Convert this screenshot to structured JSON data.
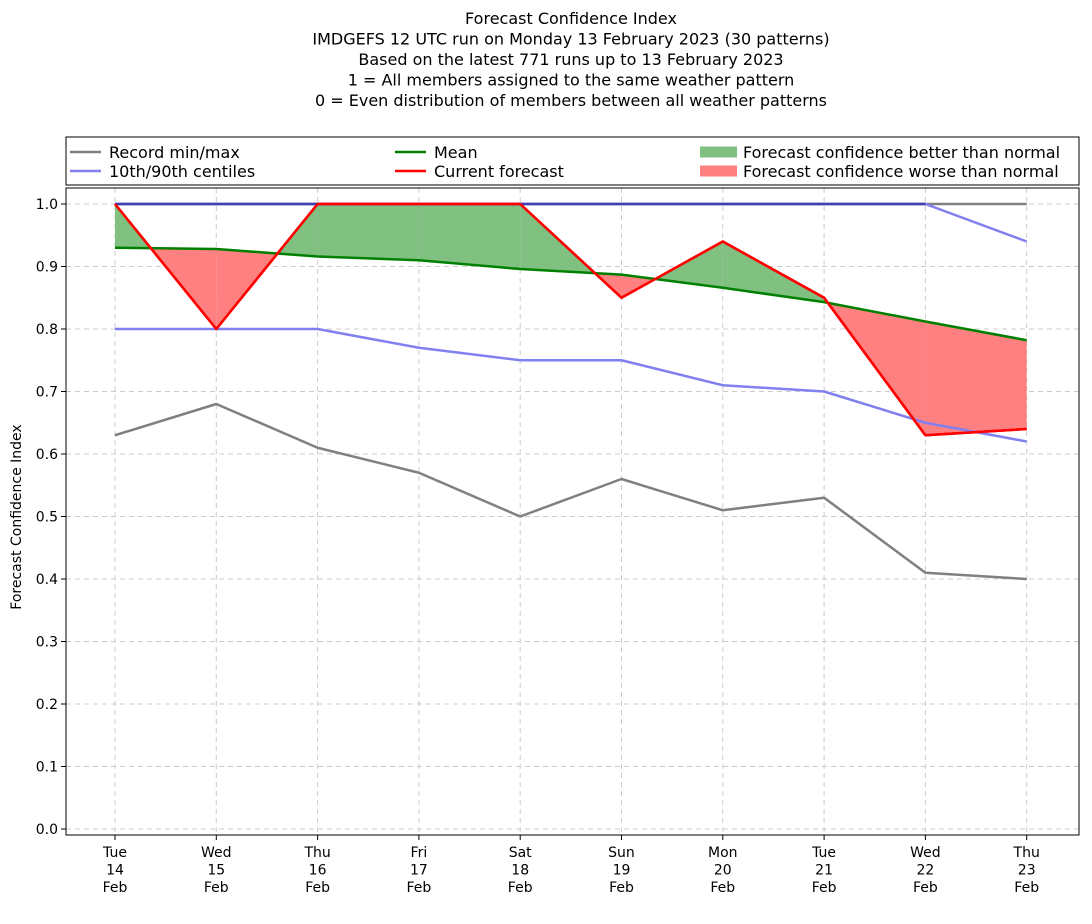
{
  "chart_data": {
    "type": "line",
    "title_lines": [
      "Forecast Confidence Index",
      "IMDGEFS 12 UTC run on Monday 13 February 2023 (30 patterns)",
      "Based on the latest 771 runs up to 13 February 2023",
      "1 = All members assigned to the same weather pattern",
      "0 = Even distribution of members between all weather patterns"
    ],
    "ylabel": "Forecast Confidence Index",
    "ylim": [
      0,
      1
    ],
    "yticks": [
      "0.0",
      "0.1",
      "0.2",
      "0.3",
      "0.4",
      "0.5",
      "0.6",
      "0.7",
      "0.8",
      "0.9",
      "1.0"
    ],
    "grid": true,
    "legend_placement": "top",
    "categories": [
      [
        "Tue",
        "14",
        "Feb"
      ],
      [
        "Wed",
        "15",
        "Feb"
      ],
      [
        "Thu",
        "16",
        "Feb"
      ],
      [
        "Fri",
        "17",
        "Feb"
      ],
      [
        "Sat",
        "18",
        "Feb"
      ],
      [
        "Sun",
        "19",
        "Feb"
      ],
      [
        "Mon",
        "20",
        "Feb"
      ],
      [
        "Tue",
        "21",
        "Feb"
      ],
      [
        "Wed",
        "22",
        "Feb"
      ],
      [
        "Thu",
        "23",
        "Feb"
      ]
    ],
    "series": [
      {
        "key": "record_max",
        "color": "#808080",
        "values": [
          1.0,
          1.0,
          1.0,
          1.0,
          1.0,
          1.0,
          1.0,
          1.0,
          1.0,
          1.0
        ]
      },
      {
        "key": "record_min",
        "color": "#808080",
        "values": [
          0.63,
          0.68,
          0.61,
          0.57,
          0.5,
          0.56,
          0.51,
          0.53,
          0.41,
          0.4
        ]
      },
      {
        "key": "centile_90",
        "color": "#8080f0",
        "values": [
          1.0,
          1.0,
          1.0,
          1.0,
          1.0,
          1.0,
          1.0,
          1.0,
          1.0,
          0.94
        ]
      },
      {
        "key": "centile_10",
        "color": "#8080f0",
        "values": [
          0.8,
          0.8,
          0.8,
          0.77,
          0.75,
          0.75,
          0.71,
          0.7,
          0.65,
          0.62
        ]
      },
      {
        "key": "mean",
        "color": "#008000",
        "values": [
          0.93,
          0.928,
          0.916,
          0.91,
          0.896,
          0.887,
          0.866,
          0.843,
          0.812,
          0.782
        ]
      },
      {
        "key": "current",
        "color": "#ff0000",
        "values": [
          1.0,
          0.8,
          1.0,
          1.0,
          1.0,
          0.85,
          0.94,
          0.85,
          0.63,
          0.64
        ]
      }
    ],
    "legend": [
      {
        "label": "Record min/max",
        "kind": "line",
        "color": "#808080"
      },
      {
        "label": "10th/90th centiles",
        "kind": "line",
        "color": "#8080f0"
      },
      {
        "label": "Mean",
        "kind": "line",
        "color": "#008000"
      },
      {
        "label": "Current forecast",
        "kind": "line",
        "color": "#ff0000"
      },
      {
        "label": "Forecast confidence better than normal",
        "kind": "patch",
        "color": "#80c080"
      },
      {
        "label": "Forecast confidence worse than normal",
        "kind": "patch",
        "color": "#ff8080"
      }
    ],
    "fill_better_color": "#80c080",
    "fill_worse_color": "#ff8080"
  }
}
